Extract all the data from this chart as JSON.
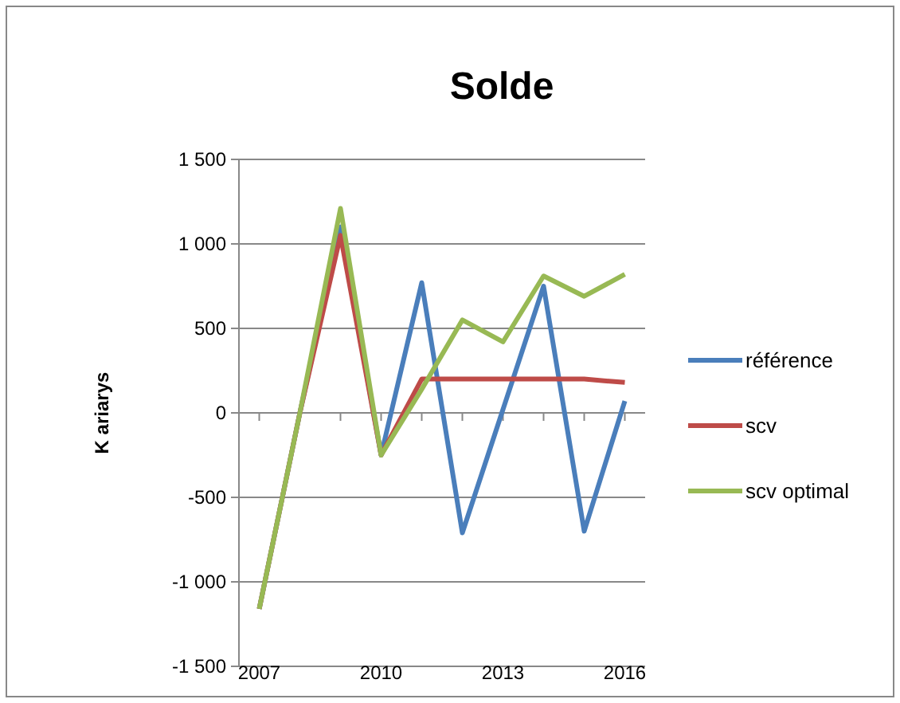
{
  "chart_data": {
    "type": "line",
    "title": "Solde",
    "ylabel": "K ariarys",
    "categories": [
      "2007",
      null,
      null,
      "2010",
      null,
      null,
      "2013",
      null,
      null,
      "2016"
    ],
    "series": [
      {
        "name": "référence",
        "color": "#4a7ebb",
        "values": [
          -1160,
          0,
          1100,
          -250,
          770,
          -710,
          20,
          750,
          -700,
          70
        ]
      },
      {
        "name": "scv",
        "color": "#be4b48",
        "values": [
          -1160,
          0,
          1050,
          -250,
          200,
          200,
          200,
          200,
          200,
          180
        ]
      },
      {
        "name": "scv optimal",
        "color": "#98b954",
        "values": [
          -1160,
          0,
          1210,
          -250,
          140,
          550,
          420,
          810,
          690,
          820
        ]
      }
    ],
    "ylim": [
      -1500,
      1500
    ],
    "yticks": [
      {
        "value": -1500,
        "label": "-1 500"
      },
      {
        "value": -1000,
        "label": "-1 000"
      },
      -500,
      0,
      500,
      {
        "value": 1000,
        "label": "1 000"
      },
      {
        "value": 1500,
        "label": "1 500"
      }
    ],
    "grid": "y",
    "legend": "right",
    "marker": "none",
    "line_style": "solid"
  }
}
